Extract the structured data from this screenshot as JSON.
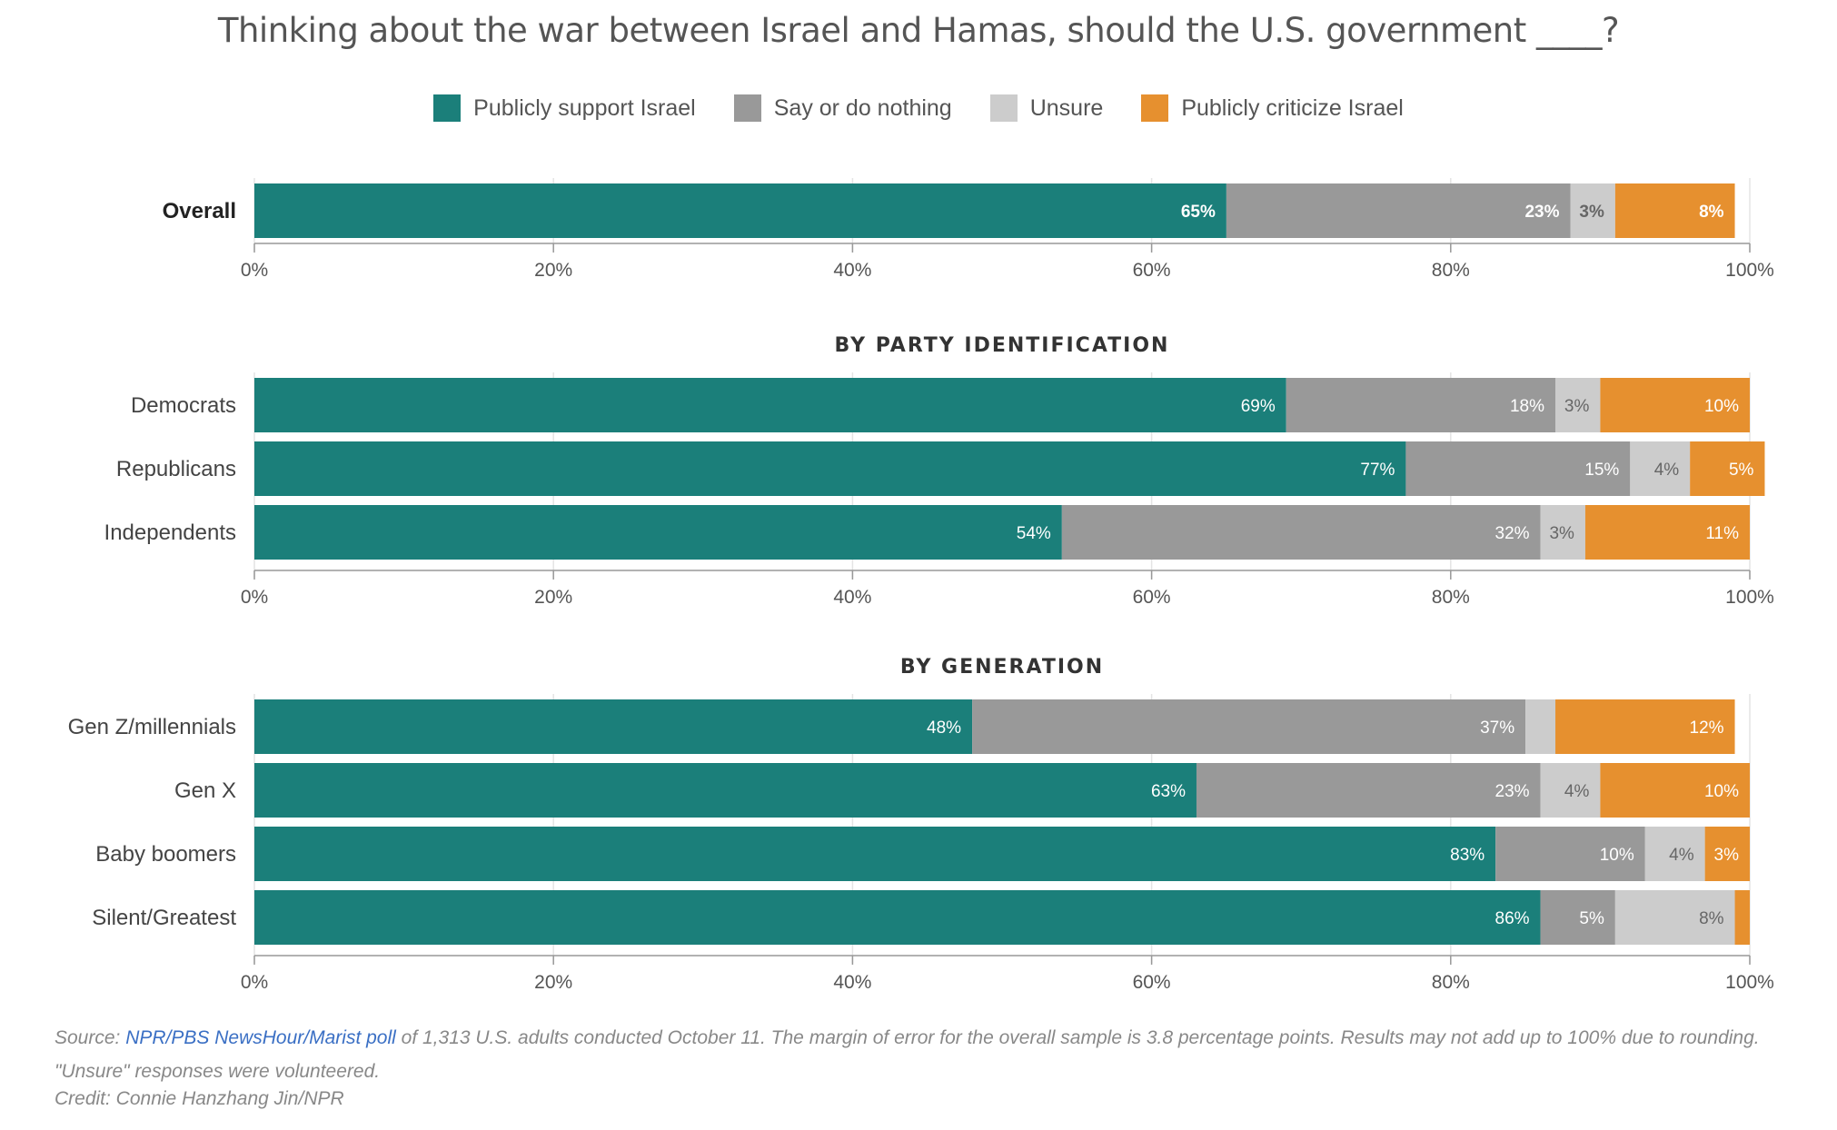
{
  "title": "Thinking about the war between Israel and Hamas, should the U.S. government ____?",
  "legend": [
    {
      "label": "Publicly support Israel",
      "color": "#1b7f7a"
    },
    {
      "label": "Say or do nothing",
      "color": "#999999"
    },
    {
      "label": "Unsure",
      "color": "#cccccc"
    },
    {
      "label": "Publicly criticize Israel",
      "color": "#e6902f"
    }
  ],
  "chart_data": {
    "type": "bar",
    "orientation": "horizontal-stacked",
    "xlim": [
      0,
      100
    ],
    "ticks": [
      "0%",
      "20%",
      "40%",
      "60%",
      "80%",
      "100%"
    ],
    "series_names": [
      "Publicly support Israel",
      "Say or do nothing",
      "Unsure",
      "Publicly criticize Israel"
    ],
    "colors": [
      "#1b7f7a",
      "#999999",
      "#cccccc",
      "#e6902f"
    ],
    "panels": [
      {
        "title": "",
        "rows": [
          {
            "label": "Overall",
            "bold": true,
            "values": [
              65,
              23,
              3,
              8
            ],
            "labels": [
              "65%",
              "23%",
              "3%",
              "8%"
            ]
          }
        ]
      },
      {
        "title": "BY PARTY IDENTIFICATION",
        "rows": [
          {
            "label": "Democrats",
            "values": [
              69,
              18,
              3,
              10
            ],
            "labels": [
              "69%",
              "18%",
              "3%",
              "10%"
            ]
          },
          {
            "label": "Republicans",
            "values": [
              77,
              15,
              4,
              5
            ],
            "labels": [
              "77%",
              "15%",
              "4%",
              "5%"
            ]
          },
          {
            "label": "Independents",
            "values": [
              54,
              32,
              3,
              11
            ],
            "labels": [
              "54%",
              "32%",
              "3%",
              "11%"
            ]
          }
        ]
      },
      {
        "title": "BY GENERATION",
        "rows": [
          {
            "label": "Gen Z/millennials",
            "values": [
              48,
              37,
              2,
              12
            ],
            "labels": [
              "48%",
              "37%",
              "",
              "12%"
            ]
          },
          {
            "label": "Gen X",
            "values": [
              63,
              23,
              4,
              10
            ],
            "labels": [
              "63%",
              "23%",
              "4%",
              "10%"
            ]
          },
          {
            "label": "Baby boomers",
            "values": [
              83,
              10,
              4,
              3
            ],
            "labels": [
              "83%",
              "10%",
              "4%",
              "3%"
            ]
          },
          {
            "label": "Silent/Greatest",
            "values": [
              86,
              5,
              8,
              1
            ],
            "labels": [
              "86%",
              "5%",
              "8%",
              ""
            ]
          }
        ]
      }
    ]
  },
  "source": {
    "prefix": "Source: ",
    "link_text": "NPR/PBS NewsHour/Marist poll",
    "rest": " of 1,313 U.S. adults conducted October 11. The margin of error for the overall sample is 3.8 percentage points. Results may not add up to 100% due to rounding. \"Unsure\" responses were volunteered."
  },
  "credit": "Credit: Connie Hanzhang Jin/NPR"
}
